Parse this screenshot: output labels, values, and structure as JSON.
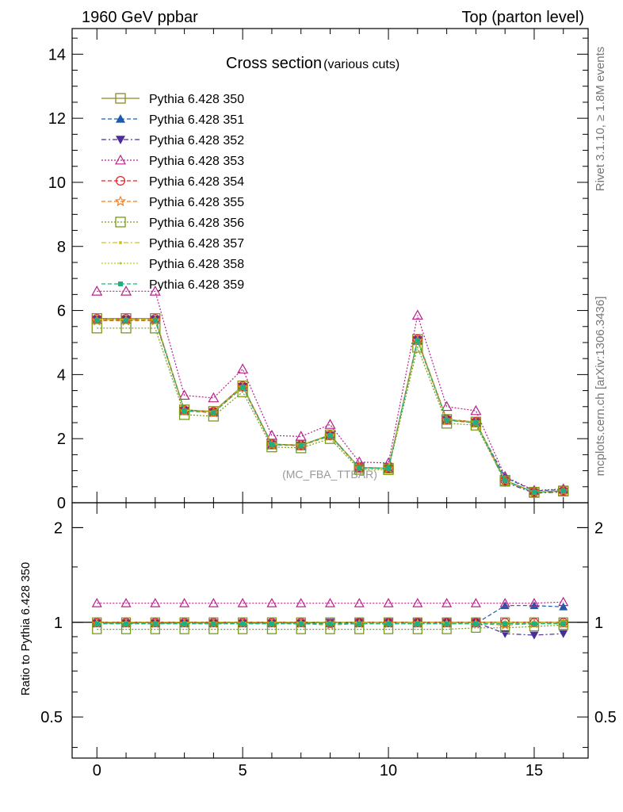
{
  "header": {
    "left": "1960 GeV ppbar",
    "right": "Top (parton level)"
  },
  "side_labels": {
    "rivet": "Rivet 3.1.10, ≥ 1.8M events",
    "mcplots": "mcplots.cern.ch [arXiv:1306.3436]"
  },
  "chart_data": [
    {
      "panel": "main",
      "type": "line",
      "title": "Cross section",
      "subtitle": "(various cuts)",
      "watermark": "(MC_FBA_TTBAR)",
      "xlim": [
        -0.85,
        16.85
      ],
      "ylim": [
        0,
        14.8
      ],
      "yticks": [
        0,
        2,
        4,
        6,
        8,
        10,
        12,
        14
      ],
      "ytick_labels": [
        "0",
        "2",
        "4",
        "6",
        "8",
        "10",
        "12",
        "14"
      ],
      "x": [
        0,
        1,
        2,
        3,
        4,
        5,
        6,
        7,
        8,
        9,
        10,
        11,
        12,
        13,
        14,
        15,
        16
      ],
      "legend_position": "top-left",
      "series": [
        {
          "name": "Pythia 6.428 350",
          "color": "#8b8b24",
          "marker": "square-open",
          "dash": "solid",
          "values": [
            5.75,
            5.75,
            5.75,
            2.9,
            2.85,
            3.65,
            1.83,
            1.8,
            2.12,
            1.1,
            1.08,
            5.1,
            2.6,
            2.52,
            0.7,
            0.33,
            0.37
          ]
        },
        {
          "name": "Pythia 6.428 351",
          "color": "#1c5aaa",
          "marker": "triangle-up-filled",
          "dash": "dashed",
          "values": [
            5.7,
            5.7,
            5.7,
            2.87,
            2.82,
            3.6,
            1.81,
            1.78,
            2.1,
            1.09,
            1.07,
            5.05,
            2.58,
            2.5,
            0.79,
            0.37,
            0.41
          ]
        },
        {
          "name": "Pythia 6.428 352",
          "color": "#4a2c9c",
          "marker": "triangle-down-filled",
          "dash": "dashdot",
          "values": [
            5.72,
            5.72,
            5.72,
            2.88,
            2.83,
            3.62,
            1.82,
            1.79,
            2.11,
            1.1,
            1.08,
            5.08,
            2.59,
            2.51,
            0.64,
            0.3,
            0.34
          ]
        },
        {
          "name": "Pythia 6.428 353",
          "color": "#b8208a",
          "marker": "triangle-up-open",
          "dash": "dotted",
          "values": [
            6.6,
            6.6,
            6.6,
            3.35,
            3.27,
            4.17,
            2.1,
            2.07,
            2.44,
            1.27,
            1.24,
            5.85,
            3.0,
            2.87,
            0.82,
            0.38,
            0.43
          ]
        },
        {
          "name": "Pythia 6.428 354",
          "color": "#e0202a",
          "marker": "circle-open",
          "dash": "dashed",
          "values": [
            5.74,
            5.74,
            5.74,
            2.89,
            2.84,
            3.64,
            1.83,
            1.8,
            2.1,
            1.1,
            1.08,
            5.1,
            2.6,
            2.52,
            0.7,
            0.33,
            0.37
          ]
        },
        {
          "name": "Pythia 6.428 355",
          "color": "#f07a1a",
          "marker": "star-open",
          "dash": "dashed",
          "values": [
            5.68,
            5.68,
            5.68,
            2.86,
            2.81,
            3.6,
            1.81,
            1.78,
            2.08,
            1.09,
            1.07,
            5.05,
            2.57,
            2.49,
            0.69,
            0.33,
            0.36
          ]
        },
        {
          "name": "Pythia 6.428 356",
          "color": "#7a9a1a",
          "marker": "square-open",
          "dash": "dotted",
          "values": [
            5.45,
            5.45,
            5.45,
            2.75,
            2.7,
            3.46,
            1.74,
            1.71,
            2.0,
            1.04,
            1.03,
            4.85,
            2.48,
            2.42,
            0.67,
            0.32,
            0.36
          ]
        },
        {
          "name": "Pythia 6.428 357",
          "color": "#d4c21a",
          "marker": "dot",
          "dash": "dashdot",
          "values": [
            5.73,
            5.73,
            5.73,
            2.89,
            2.84,
            3.63,
            1.83,
            1.8,
            2.11,
            1.1,
            1.08,
            5.09,
            2.6,
            2.52,
            0.7,
            0.33,
            0.37
          ]
        },
        {
          "name": "Pythia 6.428 358",
          "color": "#a8d020",
          "marker": "dot-small",
          "dash": "dotted",
          "values": [
            5.71,
            5.71,
            5.71,
            2.88,
            2.83,
            3.62,
            1.82,
            1.79,
            2.1,
            1.09,
            1.07,
            5.07,
            2.59,
            2.51,
            0.7,
            0.33,
            0.37
          ]
        },
        {
          "name": "Pythia 6.428 359",
          "color": "#20b080",
          "marker": "square-filled-small",
          "dash": "dashed",
          "values": [
            5.7,
            5.7,
            5.7,
            2.87,
            2.82,
            3.61,
            1.82,
            1.79,
            2.1,
            1.09,
            1.07,
            5.06,
            2.58,
            2.5,
            0.7,
            0.33,
            0.37
          ]
        }
      ]
    },
    {
      "panel": "ratio",
      "type": "line",
      "ylabel": "Ratio to Pythia 6.428 350",
      "yscale": "log",
      "ylim": [
        0.37,
        2.4
      ],
      "yticks": [
        0.5,
        1,
        2
      ],
      "ytick_labels": [
        "0.5",
        "1",
        "2"
      ],
      "xticks": [
        0,
        5,
        10,
        15
      ],
      "xtick_labels": [
        "0",
        "5",
        "10",
        "15"
      ],
      "x": [
        0,
        1,
        2,
        3,
        4,
        5,
        6,
        7,
        8,
        9,
        10,
        11,
        12,
        13,
        14,
        15,
        16
      ],
      "series": [
        {
          "name": "Pythia 6.428 350",
          "values": [
            1,
            1,
            1,
            1,
            1,
            1,
            1,
            1,
            1,
            1,
            1,
            1,
            1,
            1,
            1,
            1,
            1
          ]
        },
        {
          "name": "Pythia 6.428 351",
          "values": [
            0.99,
            0.99,
            0.99,
            0.99,
            0.99,
            0.99,
            0.99,
            0.99,
            0.99,
            0.99,
            0.99,
            0.99,
            0.99,
            0.99,
            1.13,
            1.13,
            1.12
          ]
        },
        {
          "name": "Pythia 6.428 352",
          "values": [
            0.995,
            0.995,
            0.995,
            0.995,
            0.995,
            0.995,
            0.995,
            0.995,
            1.0,
            1.0,
            1.0,
            1.0,
            1.0,
            1.0,
            0.92,
            0.91,
            0.92
          ]
        },
        {
          "name": "Pythia 6.428 353",
          "values": [
            1.15,
            1.15,
            1.15,
            1.15,
            1.15,
            1.15,
            1.15,
            1.15,
            1.15,
            1.15,
            1.15,
            1.15,
            1.15,
            1.15,
            1.15,
            1.15,
            1.16
          ]
        },
        {
          "name": "Pythia 6.428 354",
          "values": [
            1.0,
            1.0,
            1.0,
            1.0,
            1.0,
            1.0,
            1.0,
            1.0,
            0.99,
            1.0,
            1.0,
            1.0,
            1.0,
            1.0,
            1.0,
            1.0,
            1.0
          ]
        },
        {
          "name": "Pythia 6.428 355",
          "values": [
            0.99,
            0.99,
            0.99,
            0.99,
            0.99,
            0.99,
            0.99,
            0.99,
            0.98,
            0.99,
            0.99,
            0.99,
            0.99,
            0.99,
            0.98,
            0.99,
            0.99
          ]
        },
        {
          "name": "Pythia 6.428 356",
          "values": [
            0.95,
            0.95,
            0.95,
            0.95,
            0.95,
            0.95,
            0.95,
            0.95,
            0.95,
            0.95,
            0.95,
            0.95,
            0.95,
            0.96,
            0.96,
            0.97,
            0.98
          ]
        },
        {
          "name": "Pythia 6.428 357",
          "values": [
            1.0,
            1.0,
            1.0,
            1.0,
            1.0,
            1.0,
            1.0,
            1.0,
            1.0,
            1.0,
            1.0,
            1.0,
            1.0,
            1.0,
            1.0,
            1.0,
            1.0
          ]
        },
        {
          "name": "Pythia 6.428 358",
          "values": [
            0.99,
            0.99,
            0.99,
            0.99,
            0.99,
            0.99,
            0.99,
            0.99,
            0.99,
            0.99,
            0.99,
            0.99,
            0.99,
            0.99,
            0.99,
            0.99,
            0.99
          ]
        },
        {
          "name": "Pythia 6.428 359",
          "values": [
            0.99,
            0.99,
            0.99,
            0.99,
            0.99,
            0.99,
            0.99,
            0.99,
            0.99,
            0.99,
            0.99,
            0.99,
            0.99,
            0.99,
            0.99,
            0.99,
            0.99
          ]
        }
      ]
    }
  ]
}
